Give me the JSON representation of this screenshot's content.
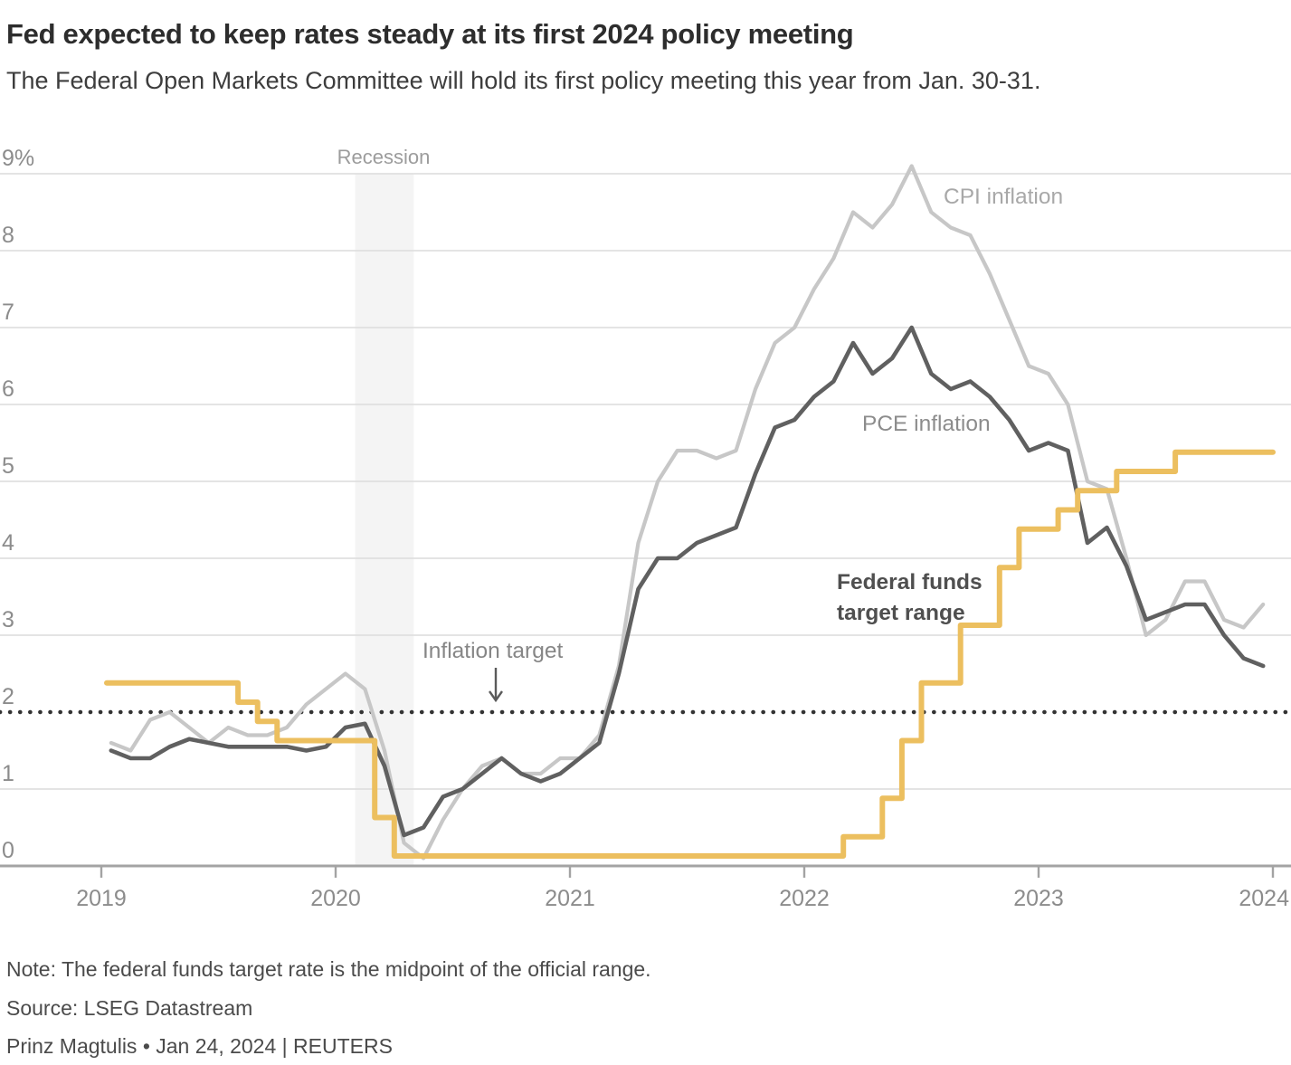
{
  "header": {
    "title": "Fed expected to keep rates steady at its first 2024 policy meeting",
    "subtitle": "The Federal Open Markets Committee will hold its first policy meeting this year from Jan. 30-31."
  },
  "footer": {
    "note": "Note: The federal funds target rate is the midpoint of the official range.",
    "source": "Source: LSEG Datastream",
    "byline": "Prinz Magtulis • Jan 24, 2024 | REUTERS"
  },
  "chart_data": {
    "type": "line",
    "start_month": "2019-01",
    "ylim": [
      0,
      9
    ],
    "grid": true,
    "y_ticks": [
      {
        "v": 0,
        "label": "0"
      },
      {
        "v": 1,
        "label": "1"
      },
      {
        "v": 2,
        "label": "2"
      },
      {
        "v": 3,
        "label": "3"
      },
      {
        "v": 4,
        "label": "4"
      },
      {
        "v": 5,
        "label": "5"
      },
      {
        "v": 6,
        "label": "6"
      },
      {
        "v": 7,
        "label": "7"
      },
      {
        "v": 8,
        "label": "8"
      },
      {
        "v": 9,
        "label": "9%"
      }
    ],
    "x_ticks": [
      {
        "month": 0,
        "label": "2019"
      },
      {
        "month": 12,
        "label": "2020"
      },
      {
        "month": 24,
        "label": "2021"
      },
      {
        "month": 36,
        "label": "2022"
      },
      {
        "month": 48,
        "label": "2023"
      },
      {
        "month": 60,
        "label": "2024"
      }
    ],
    "inflation_target": {
      "value": 2,
      "label": "Inflation target"
    },
    "recession": {
      "label": "Recession",
      "start_month": 13,
      "end_month": 16
    },
    "colors": {
      "cpi": "#c7c7c7",
      "pce": "#606060",
      "fed_funds": "#ecbf5f",
      "grid": "#dcdcdc",
      "axis": "#a3a3a3",
      "recession_band": "#f4f4f4",
      "target_dots": "#333333"
    },
    "series": [
      {
        "id": "cpi",
        "name": "CPI inflation",
        "style": "line",
        "values": [
          1.6,
          1.5,
          1.9,
          2.0,
          1.8,
          1.6,
          1.8,
          1.7,
          1.7,
          1.8,
          2.1,
          2.3,
          2.5,
          2.3,
          1.5,
          0.3,
          0.1,
          0.6,
          1.0,
          1.3,
          1.4,
          1.2,
          1.2,
          1.4,
          1.4,
          1.7,
          2.6,
          4.2,
          5.0,
          5.4,
          5.4,
          5.3,
          5.4,
          6.2,
          6.8,
          7.0,
          7.5,
          7.9,
          8.5,
          8.3,
          8.6,
          9.1,
          8.5,
          8.3,
          8.2,
          7.7,
          7.1,
          6.5,
          6.4,
          6.0,
          5.0,
          4.9,
          4.0,
          3.0,
          3.2,
          3.7,
          3.7,
          3.2,
          3.1,
          3.4
        ]
      },
      {
        "id": "pce",
        "name": "PCE inflation",
        "style": "line",
        "values": [
          1.5,
          1.4,
          1.4,
          1.55,
          1.65,
          1.6,
          1.55,
          1.55,
          1.55,
          1.55,
          1.5,
          1.55,
          1.8,
          1.85,
          1.3,
          0.4,
          0.5,
          0.9,
          1.0,
          1.2,
          1.4,
          1.2,
          1.1,
          1.2,
          1.4,
          1.6,
          2.5,
          3.6,
          4.0,
          4.0,
          4.2,
          4.3,
          4.4,
          5.1,
          5.7,
          5.8,
          6.1,
          6.3,
          6.8,
          6.4,
          6.6,
          7.0,
          6.4,
          6.2,
          6.3,
          6.1,
          5.8,
          5.4,
          5.5,
          5.4,
          4.2,
          4.4,
          3.9,
          3.2,
          3.3,
          3.4,
          3.4,
          3.0,
          2.7,
          2.6
        ]
      },
      {
        "id": "fed_funds",
        "name": "Federal funds target range",
        "name_line1": "Federal funds",
        "name_line2": "target range",
        "style": "step",
        "values": [
          2.38,
          2.38,
          2.38,
          2.38,
          2.38,
          2.38,
          2.38,
          2.13,
          1.88,
          1.63,
          1.63,
          1.63,
          1.63,
          1.63,
          0.63,
          0.13,
          0.13,
          0.13,
          0.13,
          0.13,
          0.13,
          0.13,
          0.13,
          0.13,
          0.13,
          0.13,
          0.13,
          0.13,
          0.13,
          0.13,
          0.13,
          0.13,
          0.13,
          0.13,
          0.13,
          0.13,
          0.13,
          0.13,
          0.38,
          0.38,
          0.88,
          1.63,
          2.38,
          2.38,
          3.13,
          3.13,
          3.88,
          4.38,
          4.38,
          4.63,
          4.88,
          4.88,
          5.13,
          5.13,
          5.13,
          5.38,
          5.38,
          5.38,
          5.38,
          5.38,
          5.38
        ]
      }
    ]
  }
}
